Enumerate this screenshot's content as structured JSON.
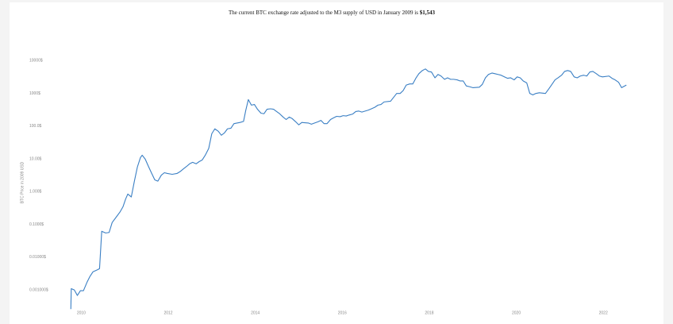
{
  "chart_data": {
    "type": "line",
    "title": "The current BTC exchange rate adjusted to the M3 supply of USD in January 2009 is",
    "current_value": "$1,543",
    "y_label": "BTC Price in 2009 USD",
    "log_y": true,
    "grid": false,
    "xlim": [
      2009.5,
      2023
    ],
    "xticks": [
      2010,
      2012,
      2014,
      2016,
      2018,
      2020,
      2022
    ],
    "ylim": [
      0.00025,
      25000
    ],
    "yticks": [
      {
        "value": 0.001,
        "label": "0.001000$"
      },
      {
        "value": 0.01,
        "label": "0.01000$"
      },
      {
        "value": 0.1,
        "label": "0.1000$"
      },
      {
        "value": 1,
        "label": "1.000$"
      },
      {
        "value": 10,
        "label": "10.00$"
      },
      {
        "value": 100,
        "label": "100.0$"
      },
      {
        "value": 1000,
        "label": "1000$"
      },
      {
        "value": 10000,
        "label": "10000$"
      }
    ],
    "x": [
      2009.76,
      2009.77,
      2009.84,
      2009.91,
      2009.98,
      2010.05,
      2010.13,
      2010.2,
      2010.27,
      2010.38,
      2010.42,
      2010.47,
      2010.56,
      2010.64,
      2010.71,
      2010.82,
      2010.89,
      2010.96,
      2011.02,
      2011.07,
      2011.15,
      2011.22,
      2011.29,
      2011.36,
      2011.4,
      2011.47,
      2011.55,
      2011.62,
      2011.69,
      2011.76,
      2011.84,
      2011.91,
      2011.98,
      2012.09,
      2012.2,
      2012.27,
      2012.35,
      2012.42,
      2012.49,
      2012.56,
      2012.64,
      2012.71,
      2012.78,
      2012.85,
      2012.93,
      2013.0,
      2013.07,
      2013.15,
      2013.22,
      2013.29,
      2013.36,
      2013.44,
      2013.51,
      2013.65,
      2013.73,
      2013.78,
      2013.84,
      2013.91,
      2013.98,
      2014.05,
      2014.13,
      2014.2,
      2014.27,
      2014.35,
      2014.42,
      2014.49,
      2014.56,
      2014.64,
      2014.71,
      2014.78,
      2014.85,
      2014.93,
      2015.0,
      2015.07,
      2015.22,
      2015.29,
      2015.44,
      2015.51,
      2015.58,
      2015.65,
      2015.73,
      2015.8,
      2015.87,
      2015.95,
      2016.02,
      2016.09,
      2016.16,
      2016.24,
      2016.31,
      2016.38,
      2016.45,
      2016.6,
      2016.67,
      2016.75,
      2016.82,
      2016.89,
      2016.96,
      2017.11,
      2017.18,
      2017.25,
      2017.33,
      2017.4,
      2017.47,
      2017.55,
      2017.62,
      2017.69,
      2017.76,
      2017.84,
      2017.91,
      2017.98,
      2018.05,
      2018.13,
      2018.2,
      2018.27,
      2018.35,
      2018.42,
      2018.49,
      2018.56,
      2018.64,
      2018.71,
      2018.78,
      2018.85,
      2018.93,
      2019.0,
      2019.15,
      2019.22,
      2019.29,
      2019.36,
      2019.44,
      2019.51,
      2019.58,
      2019.65,
      2019.73,
      2019.8,
      2019.87,
      2019.95,
      2020.02,
      2020.09,
      2020.16,
      2020.24,
      2020.31,
      2020.38,
      2020.45,
      2020.53,
      2020.67,
      2020.75,
      2020.82,
      2020.89,
      2020.96,
      2021.04,
      2021.11,
      2021.18,
      2021.25,
      2021.33,
      2021.4,
      2021.47,
      2021.55,
      2021.62,
      2021.69,
      2021.76,
      2021.84,
      2021.91,
      2021.98,
      2022.13,
      2022.2,
      2022.27,
      2022.35,
      2022.42,
      2022.53
    ],
    "series": [
      {
        "name": "BTC",
        "color": "#3a7fc4",
        "values": [
          0.00026,
          0.0011,
          0.001,
          0.00068,
          0.00095,
          0.00095,
          0.0017,
          0.0026,
          0.0036,
          0.0042,
          0.0045,
          0.062,
          0.055,
          0.057,
          0.115,
          0.18,
          0.24,
          0.35,
          0.6,
          0.85,
          0.69,
          2.07,
          5.7,
          11,
          13,
          9.9,
          5.7,
          3.6,
          2.3,
          2.1,
          3.2,
          3.8,
          3.6,
          3.4,
          3.6,
          4.1,
          5.0,
          5.9,
          7.1,
          7.9,
          7.1,
          8.3,
          9.3,
          13,
          21,
          59,
          83,
          70,
          53,
          62,
          83,
          87,
          120,
          130,
          140,
          300,
          650,
          440,
          460,
          330,
          250,
          240,
          330,
          340,
          330,
          280,
          240,
          190,
          160,
          190,
          170,
          136,
          110,
          130,
          125,
          115,
          136,
          150,
          120,
          120,
          160,
          180,
          200,
          195,
          210,
          205,
          220,
          235,
          280,
          290,
          270,
          310,
          340,
          380,
          440,
          460,
          550,
          580,
          760,
          1000,
          1000,
          1230,
          1800,
          1950,
          1950,
          2900,
          4000,
          5000,
          5600,
          4700,
          4500,
          3000,
          3800,
          3400,
          2700,
          3000,
          2700,
          2700,
          2600,
          2400,
          2400,
          1700,
          1600,
          1500,
          1550,
          1900,
          3000,
          3800,
          4200,
          4000,
          3800,
          3600,
          3200,
          2900,
          3000,
          2600,
          3200,
          3000,
          2400,
          2100,
          1000,
          900,
          1000,
          1050,
          1000,
          1400,
          1900,
          2600,
          3000,
          3600,
          4700,
          5000,
          4700,
          3200,
          3000,
          3400,
          3600,
          3400,
          4500,
          4700,
          4000,
          3400,
          3200,
          3400,
          2900,
          2600,
          2200,
          1500,
          1800
        ]
      }
    ]
  }
}
